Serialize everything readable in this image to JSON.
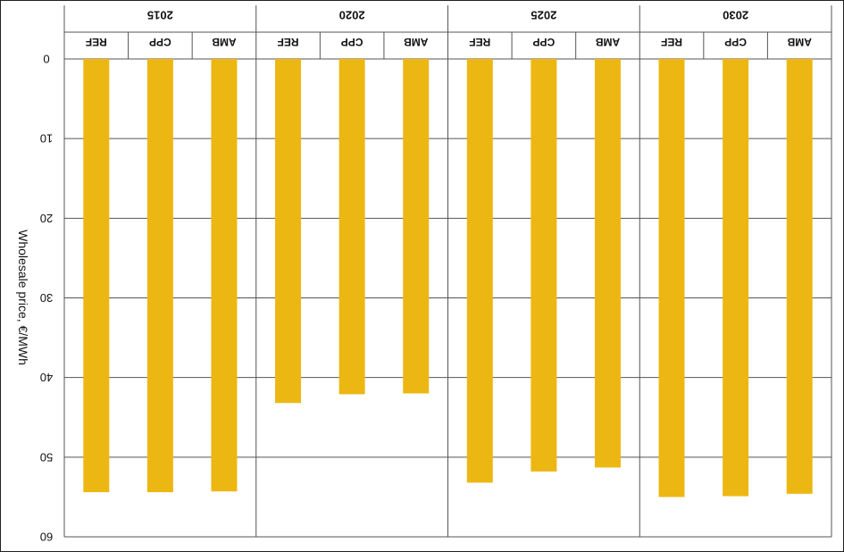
{
  "chart_data": {
    "type": "bar",
    "groups": [
      "2015",
      "2020",
      "2025",
      "2030"
    ],
    "categories": [
      "REF",
      "CPP",
      "AMB"
    ],
    "series": [
      {
        "group": "2015",
        "values": [
          54.4,
          54.4,
          54.3
        ]
      },
      {
        "group": "2020",
        "values": [
          43.2,
          42.1,
          42.0
        ]
      },
      {
        "group": "2025",
        "values": [
          53.2,
          51.8,
          51.3
        ]
      },
      {
        "group": "2030",
        "values": [
          55.0,
          54.9,
          54.6
        ]
      }
    ],
    "ylabel": "Wholesale price, €/MWh",
    "ylim": [
      0,
      60
    ],
    "yticks": [
      "0",
      "10",
      "20",
      "30",
      "40",
      "50",
      "60"
    ],
    "bar_color": "#EDB713",
    "grid": true,
    "orientation": "upside-down (image rotated 180°)"
  }
}
